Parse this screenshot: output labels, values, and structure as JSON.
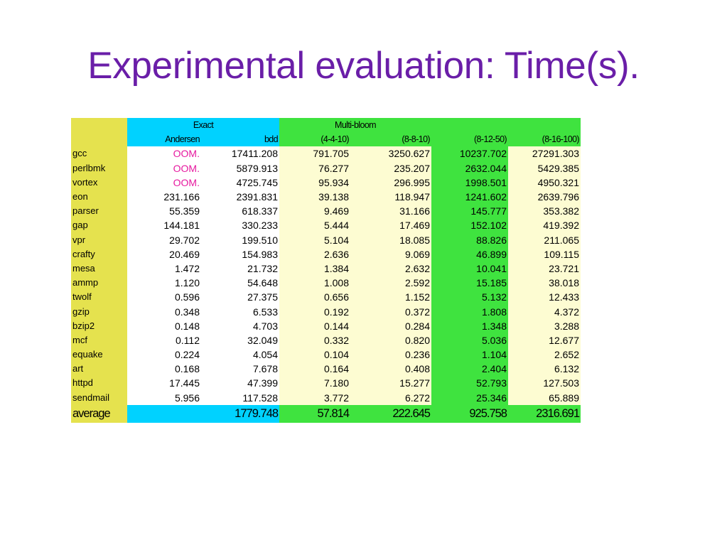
{
  "slide": {
    "title": "Experimental evaluation: Time(s)."
  },
  "table": {
    "group_headers": {
      "exact": "Exact",
      "multibloom": "Multi-bloom"
    },
    "columns": [
      "Andersen",
      "bdd",
      "(4-4-10)",
      "(8-8-10)",
      "(8-12-50)",
      "(8-16-100)"
    ],
    "rows": [
      {
        "name": "gcc",
        "values": [
          "OOM.",
          "17411.208",
          "791.705",
          "3250.627",
          "10237.702",
          "27291.303"
        ]
      },
      {
        "name": "perlbmk",
        "values": [
          "OOM.",
          "5879.913",
          "76.277",
          "235.207",
          "2632.044",
          "5429.385"
        ]
      },
      {
        "name": "vortex",
        "values": [
          "OOM.",
          "4725.745",
          "95.934",
          "296.995",
          "1998.501",
          "4950.321"
        ]
      },
      {
        "name": "eon",
        "values": [
          "231.166",
          "2391.831",
          "39.138",
          "118.947",
          "1241.602",
          "2639.796"
        ]
      },
      {
        "name": "parser",
        "values": [
          "55.359",
          "618.337",
          "9.469",
          "31.166",
          "145.777",
          "353.382"
        ]
      },
      {
        "name": "gap",
        "values": [
          "144.181",
          "330.233",
          "5.444",
          "17.469",
          "152.102",
          "419.392"
        ]
      },
      {
        "name": "vpr",
        "values": [
          "29.702",
          "199.510",
          "5.104",
          "18.085",
          "88.826",
          "211.065"
        ]
      },
      {
        "name": "crafty",
        "values": [
          "20.469",
          "154.983",
          "2.636",
          "9.069",
          "46.899",
          "109.115"
        ]
      },
      {
        "name": "mesa",
        "values": [
          "1.472",
          "21.732",
          "1.384",
          "2.632",
          "10.041",
          "23.721"
        ]
      },
      {
        "name": "ammp",
        "values": [
          "1.120",
          "54.648",
          "1.008",
          "2.592",
          "15.185",
          "38.018"
        ]
      },
      {
        "name": "twolf",
        "values": [
          "0.596",
          "27.375",
          "0.656",
          "1.152",
          "5.132",
          "12.433"
        ]
      },
      {
        "name": "gzip",
        "values": [
          "0.348",
          "6.533",
          "0.192",
          "0.372",
          "1.808",
          "4.372"
        ]
      },
      {
        "name": "bzip2",
        "values": [
          "0.148",
          "4.703",
          "0.144",
          "0.284",
          "1.348",
          "3.288"
        ]
      },
      {
        "name": "mcf",
        "values": [
          "0.112",
          "32.049",
          "0.332",
          "0.820",
          "5.036",
          "12.677"
        ]
      },
      {
        "name": "equake",
        "values": [
          "0.224",
          "4.054",
          "0.104",
          "0.236",
          "1.104",
          "2.652"
        ]
      },
      {
        "name": "art",
        "values": [
          "0.168",
          "7.678",
          "0.164",
          "0.408",
          "2.404",
          "6.132"
        ]
      },
      {
        "name": "httpd",
        "values": [
          "17.445",
          "47.399",
          "7.180",
          "15.277",
          "52.793",
          "127.503"
        ]
      },
      {
        "name": "sendmail",
        "values": [
          "5.956",
          "117.528",
          "3.772",
          "6.272",
          "25.346",
          "65.889"
        ]
      }
    ],
    "average": {
      "name": "average",
      "values": [
        "",
        "1779.748",
        "57.814",
        "222.645",
        "925.758",
        "2316.691"
      ]
    }
  },
  "colors": {
    "title": "#6a1ea8",
    "benchmark_column": "#e5e24e",
    "exact_header": "#00d2ff",
    "multibloom_header": "#3fe33f",
    "multibloom_light": "#fdfcd2",
    "oom_text": "#e6199f"
  }
}
